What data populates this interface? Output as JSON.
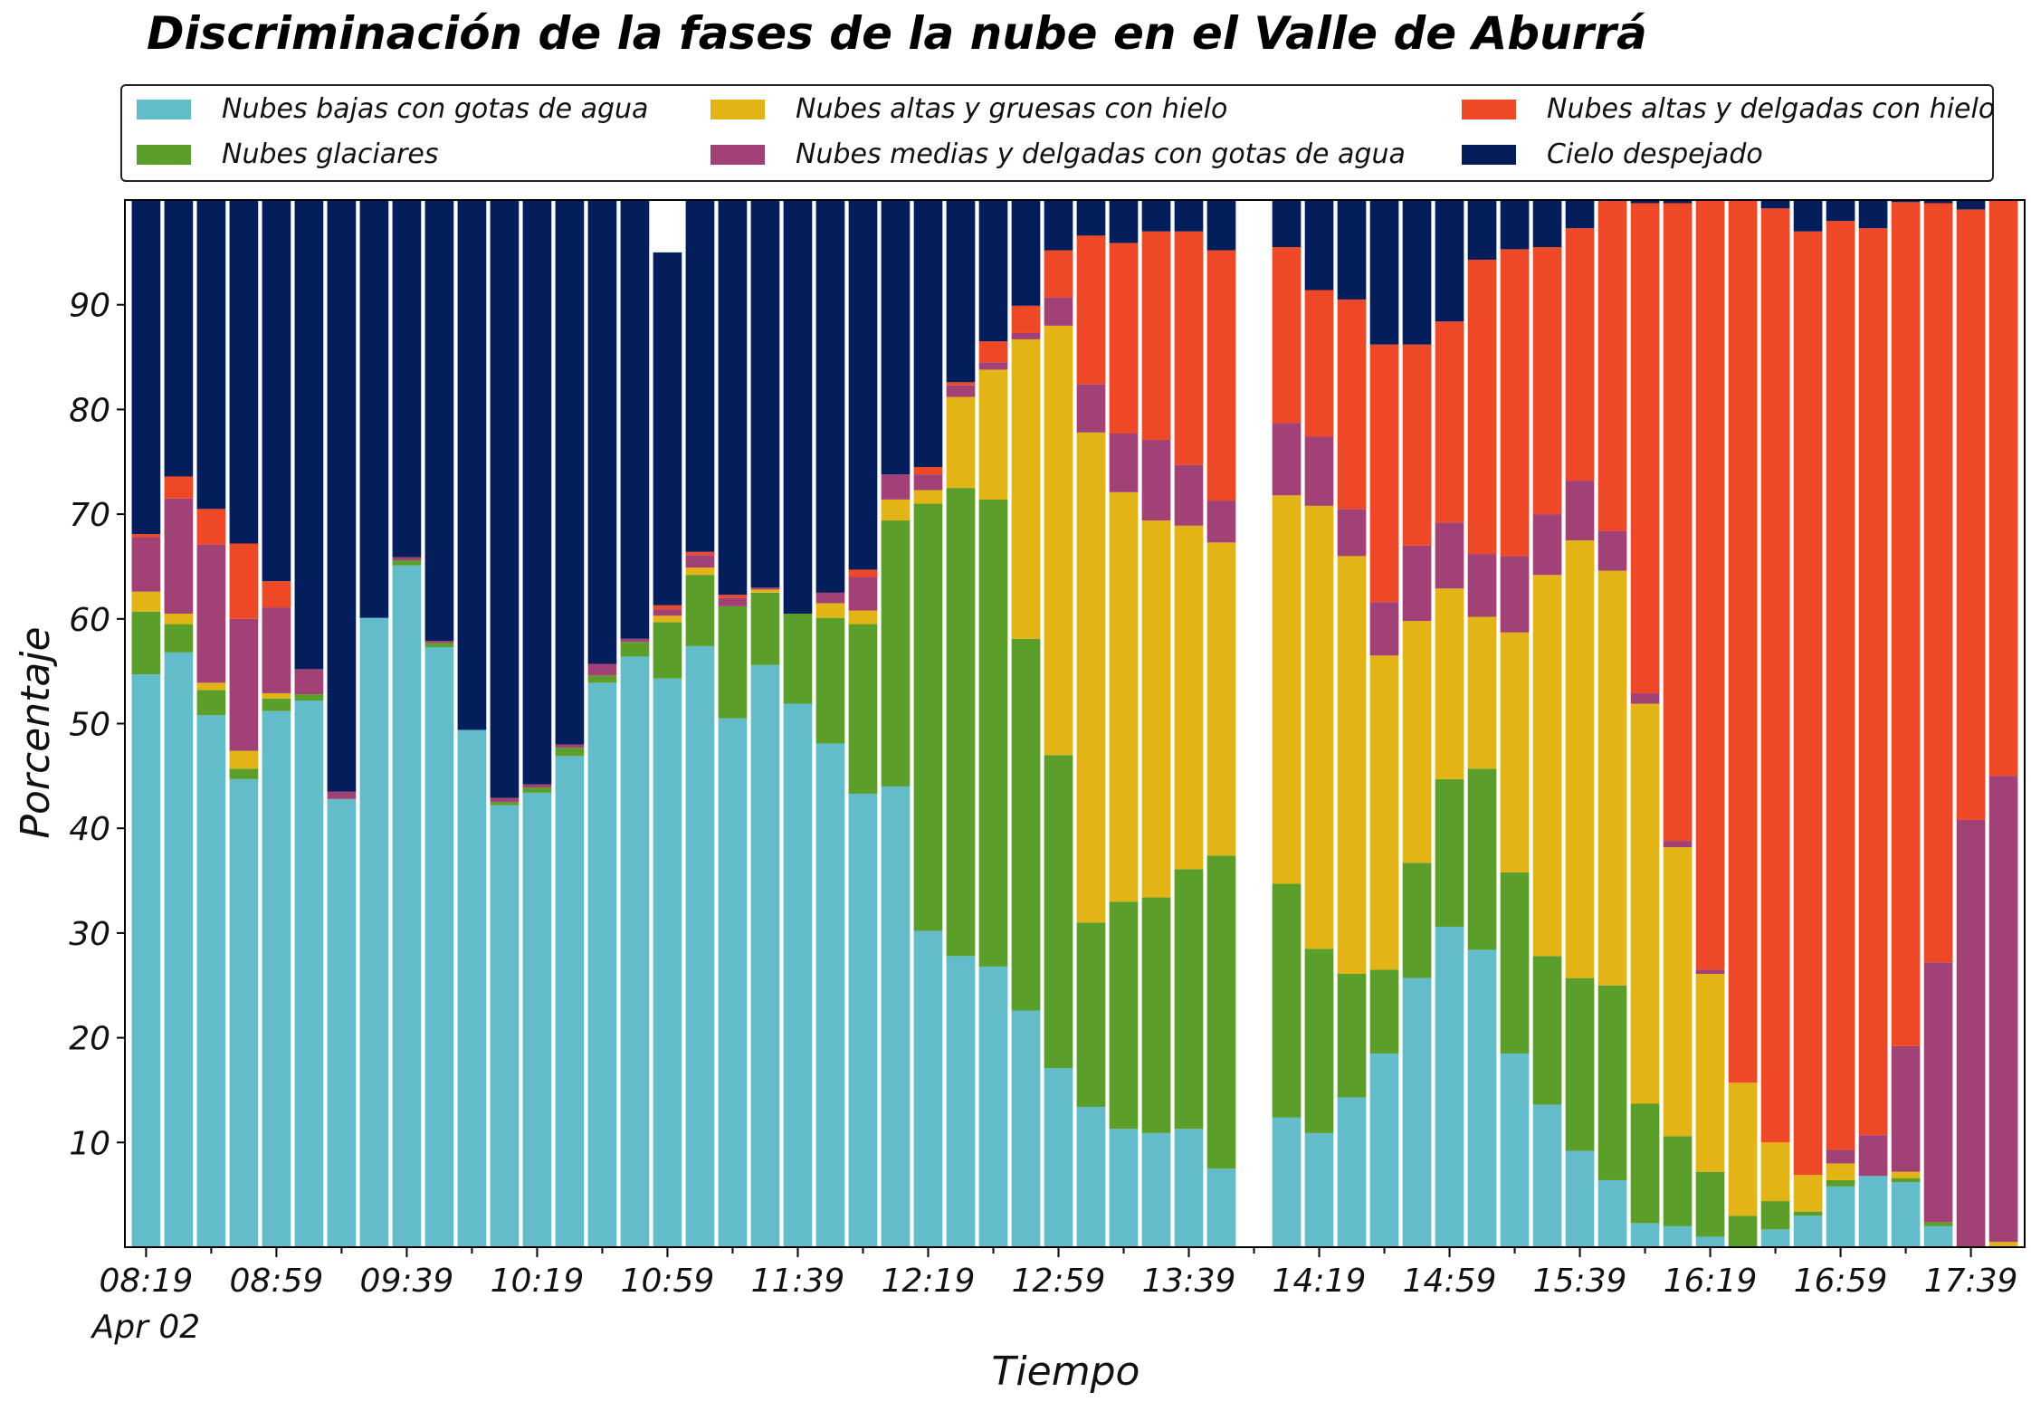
{
  "chart_data": {
    "type": "bar",
    "stacked": true,
    "title": "Discriminación de la fases de la nube en el Valle de Aburrá",
    "xlabel": "Tiempo",
    "ylabel": "Porcentaje",
    "ylim": [
      0,
      100
    ],
    "yticks": [
      10,
      20,
      30,
      40,
      50,
      60,
      70,
      80,
      90
    ],
    "grid": false,
    "legend_position": "top",
    "date_label": "Apr 02",
    "xtick_labels": [
      "08:19",
      "08:59",
      "09:39",
      "10:19",
      "10:59",
      "11:39",
      "12:19",
      "12:59",
      "13:39",
      "14:19",
      "14:59",
      "15:39",
      "16:19",
      "16:59",
      "17:39"
    ],
    "x": [
      "08:19",
      "08:29",
      "08:39",
      "08:49",
      "08:59",
      "09:09",
      "09:19",
      "09:29",
      "09:39",
      "09:49",
      "09:59",
      "10:09",
      "10:19",
      "10:29",
      "10:39",
      "10:49",
      "10:59",
      "11:09",
      "11:19",
      "11:29",
      "11:39",
      "11:49",
      "11:59",
      "12:09",
      "12:19",
      "12:29",
      "12:39",
      "12:49",
      "12:59",
      "13:09",
      "13:19",
      "13:29",
      "13:39",
      "13:49",
      "14:09",
      "14:19",
      "14:29",
      "14:39",
      "14:49",
      "14:59",
      "15:09",
      "15:19",
      "15:29",
      "15:39",
      "15:49",
      "15:59",
      "16:09",
      "16:19",
      "16:29",
      "16:39",
      "16:49",
      "16:59",
      "17:09",
      "17:19",
      "17:29",
      "17:39",
      "17:49"
    ],
    "series": [
      {
        "name": "Nubes bajas con gotas de agua",
        "color": "#63bcc9",
        "values": [
          54.7,
          56.8,
          50.8,
          44.7,
          51.2,
          52.2,
          42.8,
          60.1,
          65.1,
          57.3,
          49.4,
          42.2,
          43.4,
          46.9,
          53.9,
          56.4,
          54.3,
          57.4,
          50.5,
          55.6,
          51.9,
          48.1,
          43.3,
          44.0,
          30.2,
          27.8,
          26.8,
          22.6,
          17.1,
          13.4,
          11.3,
          10.9,
          11.3,
          7.5,
          12.4,
          10.9,
          14.3,
          18.5,
          25.7,
          30.6,
          28.4,
          18.5,
          13.6,
          9.2,
          6.4,
          2.3,
          2.0,
          1.0,
          0.0,
          1.7,
          3.0,
          5.8,
          6.8,
          6.2,
          2.0,
          0.0,
          0.0
        ]
      },
      {
        "name": "Nubes glaciares",
        "color": "#5b9e29",
        "values": [
          6.0,
          2.7,
          2.4,
          1.0,
          1.2,
          0.6,
          0,
          0,
          0.5,
          0.4,
          0,
          0.3,
          0.5,
          0.8,
          0.7,
          1.4,
          5.4,
          6.8,
          10.7,
          6.9,
          8.6,
          12.0,
          16.2,
          25.4,
          40.8,
          44.7,
          44.6,
          35.5,
          29.9,
          17.6,
          21.7,
          22.5,
          24.8,
          29.9,
          22.3,
          17.6,
          11.8,
          8.0,
          11.0,
          14.1,
          17.3,
          17.3,
          14.2,
          16.5,
          18.6,
          11.4,
          8.6,
          6.2,
          3.0,
          2.7,
          0.4,
          0.6,
          0,
          0.4,
          0.4,
          0,
          0
        ]
      },
      {
        "name": "Nubes altas y gruesas con hielo",
        "color": "#e3b416",
        "values": [
          1.9,
          1.0,
          0.7,
          1.7,
          0.5,
          0,
          0,
          0,
          0,
          0,
          0,
          0,
          0,
          0,
          0,
          0,
          0.6,
          0.7,
          0,
          0.3,
          0,
          1.4,
          1.3,
          2.0,
          1.3,
          8.7,
          12.4,
          28.6,
          41.0,
          46.8,
          39.1,
          36.0,
          32.8,
          29.9,
          37.1,
          42.3,
          39.9,
          30.0,
          23.1,
          18.2,
          14.5,
          22.9,
          36.4,
          41.8,
          39.6,
          38.2,
          27.6,
          18.9,
          12.7,
          5.6,
          3.5,
          1.6,
          0,
          0.6,
          0,
          0,
          0.5
        ]
      },
      {
        "name": "Nubes medias y delgadas con gotas de agua",
        "color": "#a14175",
        "values": [
          5.2,
          11.0,
          13.2,
          12.6,
          8.2,
          2.4,
          0.7,
          0,
          0.3,
          0.2,
          0,
          0.4,
          0.3,
          0.3,
          1.1,
          0.3,
          0.6,
          1.2,
          0.8,
          0.2,
          0,
          1.0,
          3.2,
          2.4,
          1.5,
          1.1,
          0.7,
          0.6,
          2.7,
          4.6,
          5.6,
          7.7,
          5.8,
          4.0,
          6.9,
          6.6,
          4.5,
          5.1,
          7.2,
          6.3,
          6.0,
          7.3,
          5.8,
          5.7,
          3.8,
          1.0,
          0.6,
          0.4,
          0,
          0,
          0,
          1.3,
          3.9,
          12.0,
          24.8,
          40.8,
          44.5
        ]
      },
      {
        "name": "Nubes altas y delgadas con hielo",
        "color": "#ee4826",
        "values": [
          0.3,
          2.1,
          3.4,
          7.2,
          2.5,
          0,
          0,
          0,
          0,
          0,
          0,
          0,
          0,
          0,
          0,
          0,
          0.4,
          0.3,
          0.3,
          0,
          0,
          0,
          0.7,
          0,
          0.7,
          0.3,
          2.0,
          2.6,
          4.5,
          14.2,
          18.2,
          19.9,
          22.3,
          23.9,
          16.8,
          14.0,
          20.0,
          24.6,
          19.2,
          19.2,
          28.1,
          29.3,
          25.5,
          24.1,
          31.5,
          46.8,
          60.9,
          73.6,
          84.6,
          89.2,
          90.1,
          88.7,
          86.6,
          80.6,
          72.5,
          58.3,
          55.0
        ]
      },
      {
        "name": "Cielo despejado",
        "color": "#031e5b",
        "values": [
          31.9,
          26.4,
          29.5,
          32.8,
          36.4,
          44.8,
          56.5,
          39.9,
          34.1,
          42.1,
          50.6,
          57.1,
          55.8,
          52.0,
          44.3,
          41.9,
          33.7,
          33.6,
          37.7,
          37.0,
          39.5,
          37.5,
          35.3,
          26.2,
          25.5,
          17.4,
          13.5,
          10.1,
          4.8,
          3.4,
          4.1,
          3.0,
          3.0,
          4.8,
          4.5,
          8.6,
          9.5,
          13.8,
          13.8,
          11.6,
          5.7,
          4.7,
          4.5,
          2.7,
          0.1,
          0.3,
          0.3,
          0,
          0,
          0.8,
          3.0,
          2.0,
          2.7,
          0.2,
          0.3,
          0.9,
          0
        ]
      }
    ]
  }
}
